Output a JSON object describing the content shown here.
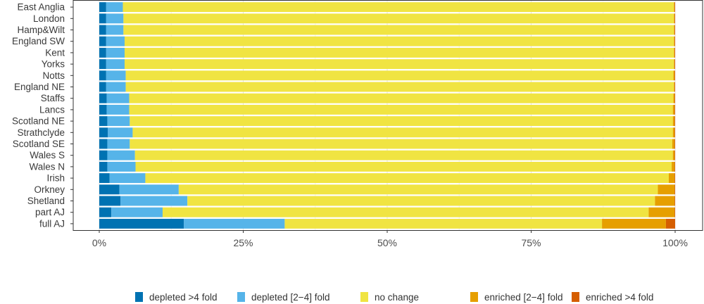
{
  "chart_data": {
    "type": "bar",
    "orientation": "horizontal",
    "stacked": true,
    "normalized": true,
    "xlabel": "",
    "ylabel": "",
    "xlim": [
      0,
      100
    ],
    "x_ticks": [
      "0%",
      "25%",
      "50%",
      "75%",
      "100%"
    ],
    "x_tick_values": [
      0,
      25,
      50,
      75,
      100
    ],
    "categories": [
      "East Anglia",
      "London",
      "Hamp&Wilt",
      "England SW",
      "Kent",
      "Yorks",
      "Notts",
      "England NE",
      "Staffs",
      "Lancs",
      "Scotland NE",
      "Strathclyde",
      "Scotland SE",
      "Wales S",
      "Wales N",
      "Irish",
      "Orkney",
      "Shetland",
      "part AJ",
      "full AJ"
    ],
    "series": [
      {
        "name": "depleted >4 fold",
        "color": "#0072B2",
        "values": [
          1.2,
          1.2,
          1.2,
          1.2,
          1.2,
          1.2,
          1.2,
          1.2,
          1.3,
          1.3,
          1.4,
          1.5,
          1.4,
          1.4,
          1.4,
          1.8,
          3.5,
          3.7,
          2.1,
          14.7
        ]
      },
      {
        "name": "depleted [2−4] fold",
        "color": "#56B4E9",
        "values": [
          2.9,
          3.0,
          3.0,
          3.2,
          3.2,
          3.2,
          3.4,
          3.4,
          3.9,
          3.9,
          3.9,
          4.3,
          3.9,
          4.8,
          4.9,
          6.2,
          10.3,
          11.6,
          8.9,
          17.5
        ]
      },
      {
        "name": "no change",
        "color": "#F0E442",
        "values": [
          95.7,
          95.6,
          95.6,
          95.4,
          95.4,
          95.4,
          95.1,
          95.2,
          94.5,
          94.4,
          94.3,
          93.8,
          94.2,
          93.4,
          93.1,
          90.9,
          83.2,
          81.2,
          84.4,
          55.1
        ]
      },
      {
        "name": "enriched [2−4] fold",
        "color": "#E69F00",
        "values": [
          0.1,
          0.1,
          0.1,
          0.1,
          0.1,
          0.1,
          0.2,
          0.1,
          0.2,
          0.3,
          0.3,
          0.3,
          0.4,
          0.3,
          0.5,
          1.0,
          2.9,
          3.4,
          4.5,
          11.1
        ]
      },
      {
        "name": "enriched >4 fold",
        "color": "#D55E00",
        "values": [
          0.1,
          0.1,
          0.1,
          0.1,
          0.1,
          0.1,
          0.1,
          0.1,
          0.1,
          0.1,
          0.1,
          0.1,
          0.1,
          0.1,
          0.1,
          0.1,
          0.1,
          0.1,
          0.1,
          1.6
        ]
      }
    ],
    "legend_position": "bottom",
    "grid": true
  }
}
